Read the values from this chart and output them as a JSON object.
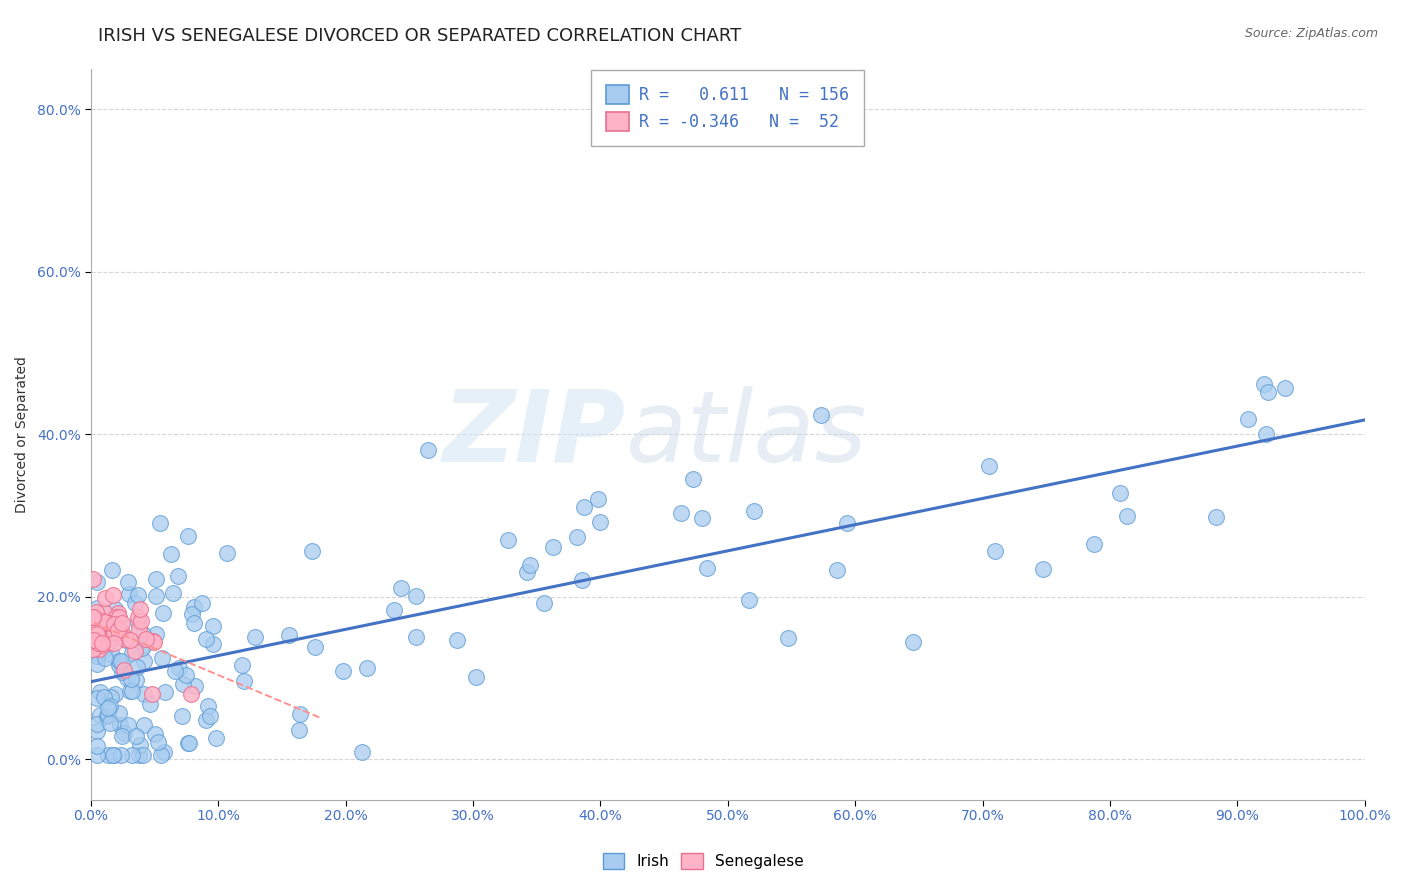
{
  "title": "IRISH VS SENEGALESE DIVORCED OR SEPARATED CORRELATION CHART",
  "source_text": "Source: ZipAtlas.com",
  "ylabel": "Divorced or Separated",
  "watermark_zip": "ZIP",
  "watermark_atlas": "atlas",
  "x_min": 0.0,
  "x_max": 1.0,
  "y_min": -0.05,
  "y_max": 0.85,
  "irish_color": "#A8CCF0",
  "irish_edge_color": "#5B9BD5",
  "senegalese_color": "#FFB3C6",
  "senegalese_edge_color": "#E87090",
  "irish_line_color": "#4472C4",
  "senegalese_line_color": "#FF9090",
  "irish_R": 0.611,
  "irish_N": 156,
  "senegalese_R": -0.346,
  "senegalese_N": 52,
  "title_fontsize": 13,
  "axis_label_fontsize": 10,
  "tick_fontsize": 10,
  "legend_fontsize": 12,
  "y_ticks": [
    0.0,
    0.2,
    0.4,
    0.6,
    0.8
  ],
  "y_tick_labels": [
    "0.0%",
    "20.0%",
    "40.0%",
    "60.0%",
    "80.0%"
  ],
  "x_ticks": [
    0.0,
    0.1,
    0.2,
    0.3,
    0.4,
    0.5,
    0.6,
    0.7,
    0.8,
    0.9,
    1.0
  ],
  "x_tick_labels": [
    "0.0%",
    "10.0%",
    "20.0%",
    "30.0%",
    "40.0%",
    "50.0%",
    "60.0%",
    "70.0%",
    "80.0%",
    "90.0%",
    "100.0%"
  ]
}
